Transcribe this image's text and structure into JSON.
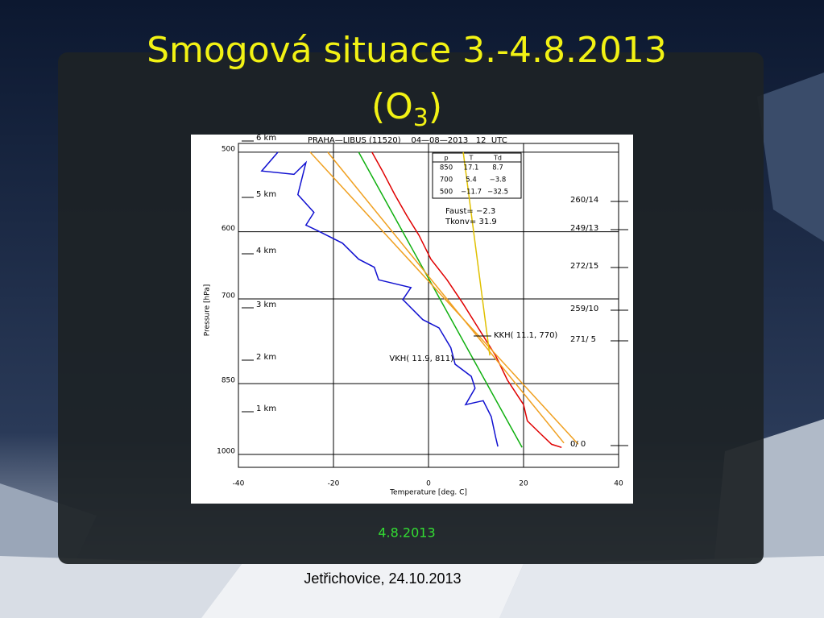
{
  "slide": {
    "title": "Smogová situace 3.-4.8.2013",
    "subtitle_open": "(O",
    "subtitle_sub": "3",
    "subtitle_close": ")",
    "caption": "4.8.2013",
    "footer": "Jetřichovice, 24.10.2013"
  },
  "chart_data": {
    "type": "line",
    "title": "PRAHA—LIBUS (11520)    04—08—2013   12  UTC",
    "x_label": "Temperature [deg. C]",
    "y_label": "Pressure [hPa]",
    "xlim": [
      -40,
      40
    ],
    "xticks": [
      -40,
      -20,
      0,
      20,
      40
    ],
    "ylim": [
      490,
      1030
    ],
    "yticks": [
      500,
      600,
      700,
      850,
      1000
    ],
    "y_log": true,
    "y_reversed": true,
    "grid": true,
    "series": [
      {
        "color": "#e00000",
        "temperature": [
          -11.9,
          -9.7,
          -7.1,
          -4.6,
          -2.0,
          0.5,
          3.9,
          7.3,
          11.5,
          14.1,
          16.6,
          20.0,
          20.8,
          23.4,
          25.9,
          28.0
        ],
        "pressure": [
          500,
          522,
          551,
          578,
          605,
          639,
          670,
          708,
          762,
          797,
          843,
          892,
          926,
          952,
          977,
          984
        ]
      },
      {
        "color": "#1010d0",
        "temperature": [
          -31.7,
          -35.1,
          -28.3,
          -25.8,
          -27.5,
          -24.1,
          -25.8,
          -23.2,
          -18.1,
          -14.7,
          -11.4,
          -10.5,
          -3.7,
          -5.4,
          -1.2,
          2.2,
          4.7,
          5.6,
          9.0,
          9.8,
          7.8,
          11.5,
          13.2,
          14.1,
          14.6
        ],
        "pressure": [
          500,
          522,
          526,
          512,
          551,
          574,
          591,
          599,
          616,
          639,
          651,
          670,
          682,
          701,
          734,
          748,
          783,
          813,
          836,
          859,
          892,
          884,
          917,
          960,
          982
        ]
      },
      {
        "color": "#10b010",
        "temperature": [
          -14.7,
          19.7
        ],
        "pressure": [
          500,
          984
        ]
      },
      {
        "color": "#f0a020",
        "temperature": [
          -24.9,
          31.5
        ],
        "pressure": [
          500,
          977
        ]
      },
      {
        "color": "#f0a020",
        "temperature": [
          -21.2,
          28.5
        ],
        "pressure": [
          500,
          974
        ]
      },
      {
        "color": "#e0c000",
        "temperature": [
          7.3,
          12.9
        ],
        "pressure": [
          500,
          797
        ]
      }
    ],
    "altitude_labels": [
      "6 km",
      "5 km",
      "4 km",
      "3 km",
      "2 km",
      "1 km"
    ],
    "wind_labels": [
      "260/14",
      "249/13",
      "272/15",
      "259/10",
      "271/ 5",
      "0/ 0"
    ],
    "table": {
      "header": [
        "p",
        "T",
        "Td"
      ],
      "rows": [
        [
          "850",
          "17.1",
          "8.7"
        ],
        [
          "700",
          "5.4",
          "−3.8"
        ],
        [
          "500",
          "−11.7",
          "−32.5"
        ]
      ]
    },
    "annotations": [
      "Faust= −2.3",
      "Tkonv= 31.9"
    ],
    "kkh": "KKH( 11.1, 770)",
    "vkh": "VKH( 11.9, 811)"
  }
}
